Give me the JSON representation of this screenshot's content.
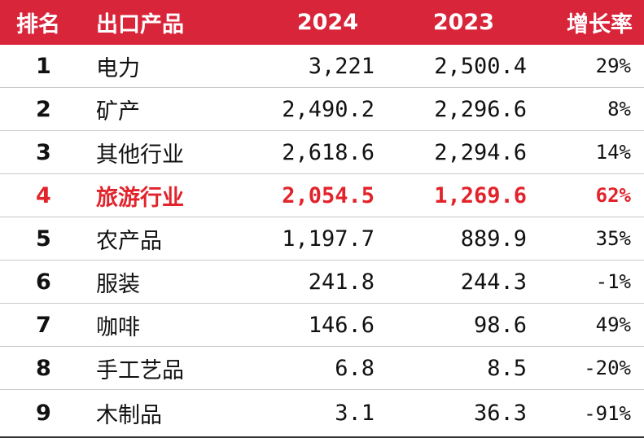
{
  "header": {
    "rank": "排名",
    "product": "出口产品",
    "y2024": "2024",
    "y2023": "2023",
    "growth": "增长率"
  },
  "colors": {
    "header_bg": "#d9253a",
    "header_text": "#ffffff",
    "highlight_text": "#e2232b",
    "body_text": "#111111"
  },
  "rows": [
    {
      "rank": "1",
      "product": "电力",
      "y2024": "3,221",
      "y2023": "2,500.4",
      "growth": "29%"
    },
    {
      "rank": "2",
      "product": "矿产",
      "y2024": "2,490.2",
      "y2023": "2,296.6",
      "growth": "8%"
    },
    {
      "rank": "3",
      "product": "其他行业",
      "y2024": "2,618.6",
      "y2023": "2,294.6",
      "growth": "14%"
    },
    {
      "rank": "4",
      "product": "旅游行业",
      "y2024": "2,054.5",
      "y2023": "1,269.6",
      "growth": "62%",
      "highlight": true
    },
    {
      "rank": "5",
      "product": "农产品",
      "y2024": "1,197.7",
      "y2023": "889.9",
      "growth": "35%"
    },
    {
      "rank": "6",
      "product": "服装",
      "y2024": "241.8",
      "y2023": "244.3",
      "growth": "-1%"
    },
    {
      "rank": "7",
      "product": "咖啡",
      "y2024": "146.6",
      "y2023": "98.6",
      "growth": "49%"
    },
    {
      "rank": "8",
      "product": "手工艺品",
      "y2024": "6.8",
      "y2023": "8.5",
      "growth": "-20%"
    },
    {
      "rank": "9",
      "product": "木制品",
      "y2024": "3.1",
      "y2023": "36.3",
      "growth": "-91%"
    }
  ]
}
